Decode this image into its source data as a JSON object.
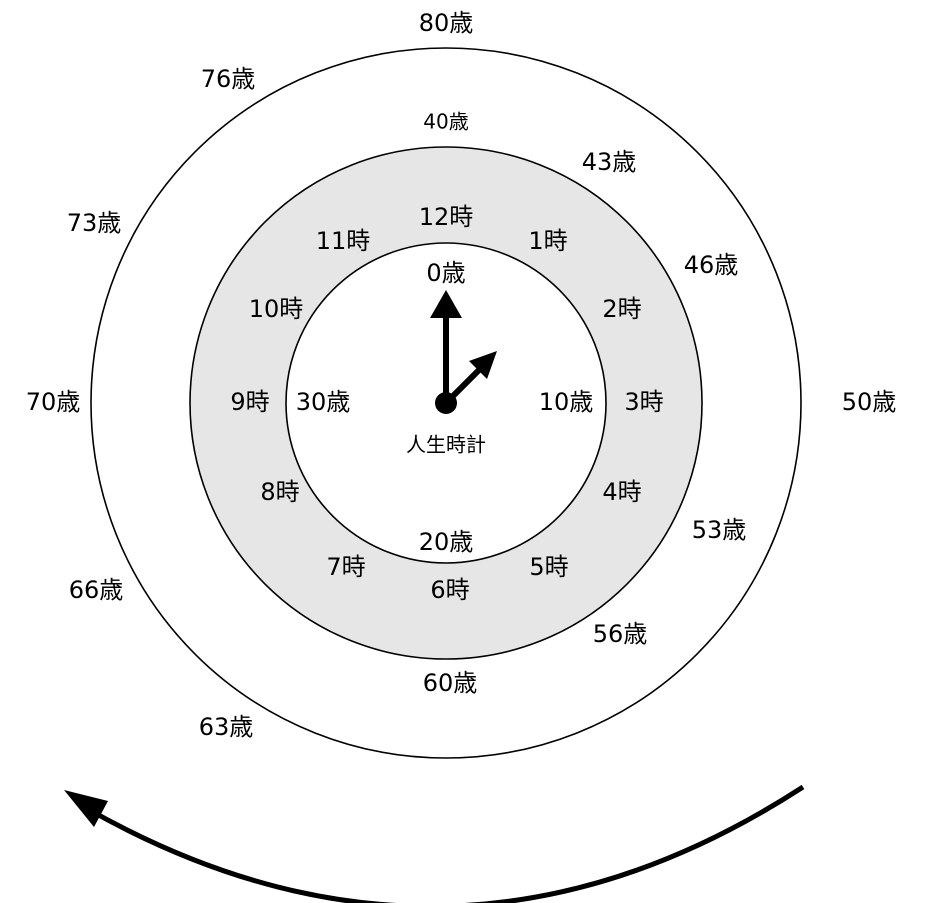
{
  "diagram": {
    "center_label": "人生時計",
    "outer_ages": [
      "40歳",
      "43歳",
      "46歳",
      "50歳",
      "53歳",
      "56歳",
      "60歳",
      "63歳",
      "66歳",
      "70歳",
      "73歳",
      "76歳",
      "80歳"
    ],
    "inner_ages": [
      "0歳",
      "10歳",
      "20歳",
      "30歳"
    ],
    "hours": [
      "12時",
      "1時",
      "2時",
      "3時",
      "4時",
      "5時",
      "6時",
      "7時",
      "8時",
      "9時",
      "10時",
      "11時"
    ],
    "colors": {
      "ring_fill": "#e6e6e6",
      "line": "#000000",
      "background": "#ffffff"
    }
  }
}
